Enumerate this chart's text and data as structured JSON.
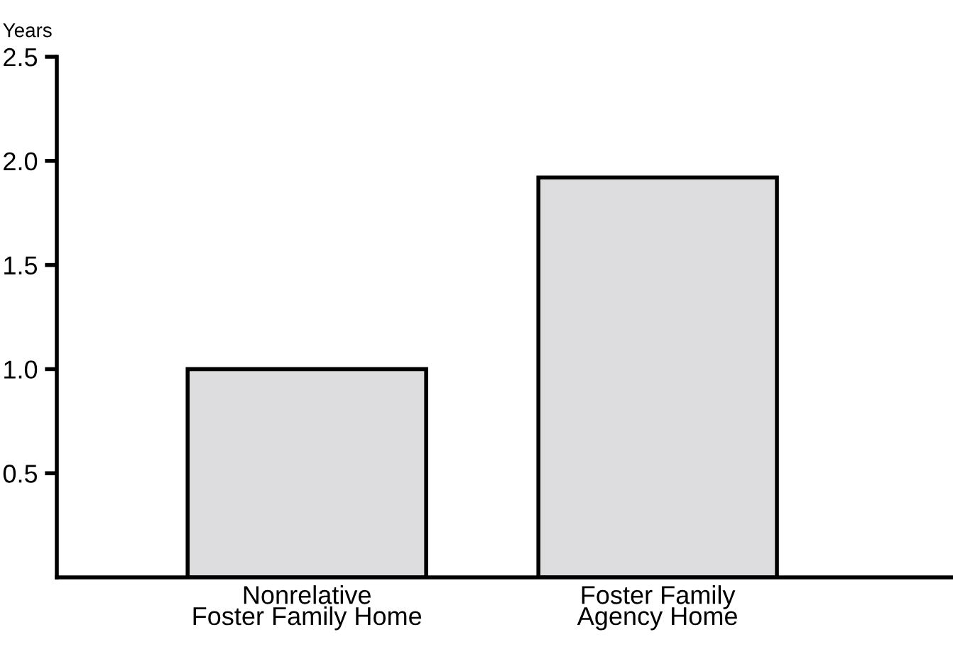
{
  "chart_data": {
    "type": "bar",
    "ylabel": "Years",
    "categories": [
      "Nonrelative\nFoster Family Home",
      "Foster Family\nAgency Home"
    ],
    "values": [
      1.0,
      1.92
    ],
    "color": "#dddddf",
    "ylim": [
      0,
      2.5
    ],
    "yticks": [
      0.5,
      {
        "value": 1,
        "label": "1.0"
      },
      1.5,
      {
        "value": 2,
        "label": "2.0"
      },
      2.5
    ],
    "grid": false,
    "legend": false
  }
}
